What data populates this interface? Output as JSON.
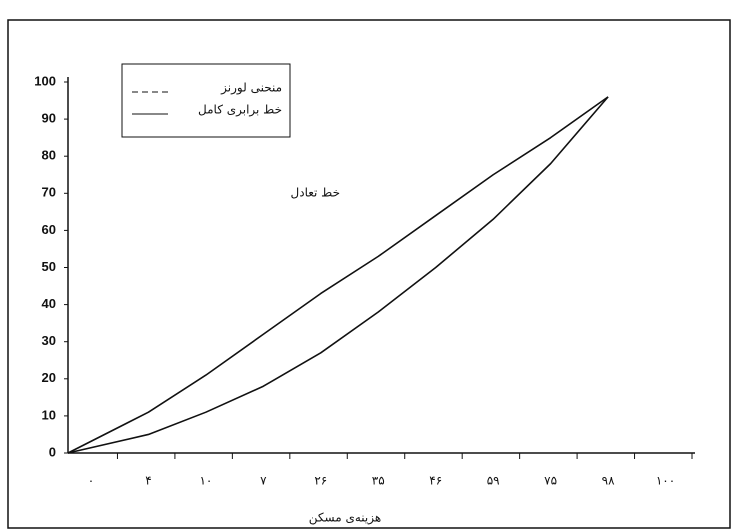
{
  "chart_data": {
    "type": "line",
    "x_label": "هزینه‌ی مسکن",
    "annotation": "خط تعادل",
    "categories": [
      "٠",
      "۴",
      "۱۰",
      "۷",
      "۲۶",
      "۳۵",
      "۴۶",
      "۵۹",
      "۷۵",
      "۹۸",
      "۱۰۰"
    ],
    "series": [
      {
        "name": "منحنی لورنز",
        "color": "#111111",
        "values": [
          0,
          5,
          11,
          18,
          27,
          38,
          50,
          63,
          78,
          96,
          null
        ]
      },
      {
        "name": "خط برابری کامل",
        "color": "#111111",
        "values": [
          0,
          11,
          21,
          32,
          43,
          53,
          64,
          75,
          85,
          96,
          null
        ]
      }
    ],
    "ylim": [
      0,
      100
    ],
    "yticks": [
      0,
      10,
      20,
      30,
      40,
      50,
      60,
      70,
      80,
      90,
      100
    ],
    "grid": false
  }
}
